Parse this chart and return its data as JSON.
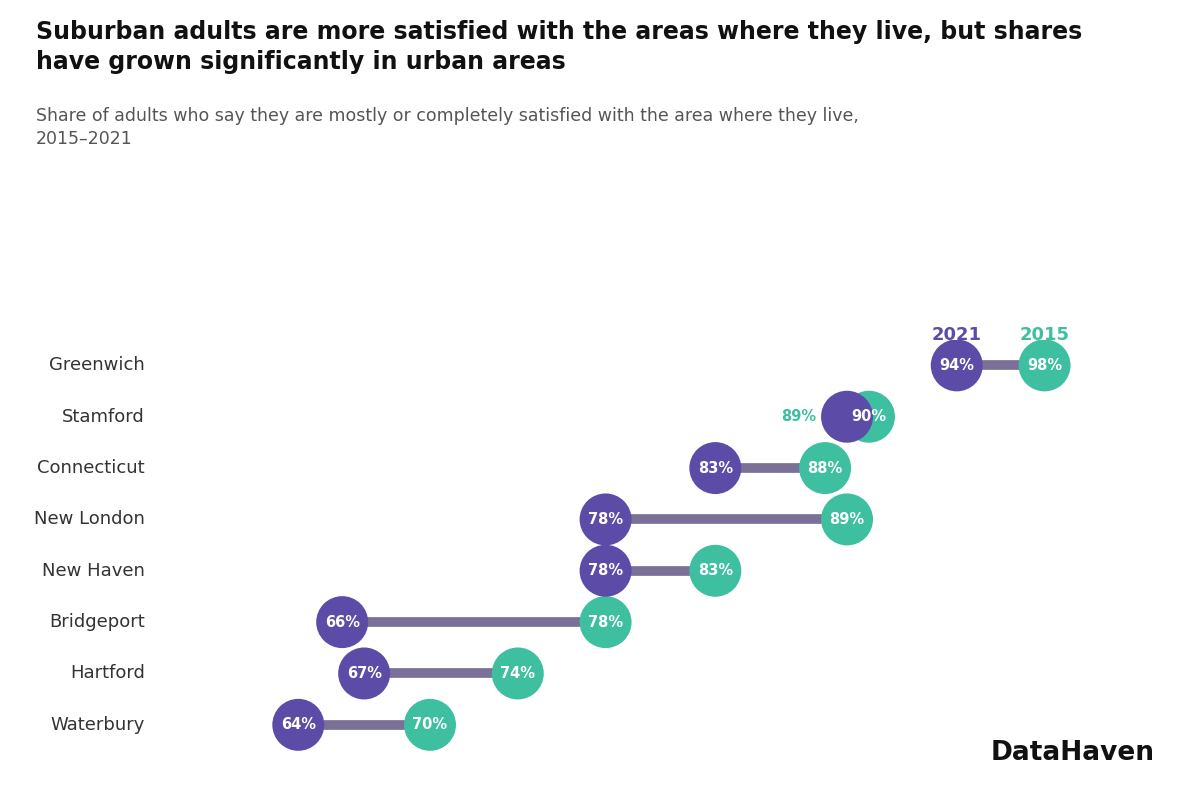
{
  "title": "Suburban adults are more satisfied with the areas where they live, but shares\nhave grown significantly in urban areas",
  "subtitle": "Share of adults who say they are mostly or completely satisfied with the area where they live,\n2015–2021",
  "towns": [
    "Greenwich",
    "Stamford",
    "Connecticut",
    "New London",
    "New Haven",
    "Bridgeport",
    "Hartford",
    "Waterbury"
  ],
  "val_2015": [
    98,
    90,
    88,
    89,
    83,
    78,
    74,
    70
  ],
  "val_2021": [
    94,
    89,
    83,
    78,
    78,
    66,
    67,
    64
  ],
  "color_2015": "#3dbfa0",
  "color_2021": "#5c4ca8",
  "line_color": "#7a7098",
  "title_fontsize": 17,
  "subtitle_fontsize": 12.5,
  "label_fontsize": 13,
  "dot_fontsize": 10.5,
  "legend_fontsize": 13,
  "background_color": "#ffffff",
  "line_width": 7,
  "brand": "DataHaven",
  "brand_fontsize": 19,
  "x_min": 58,
  "x_max": 103
}
